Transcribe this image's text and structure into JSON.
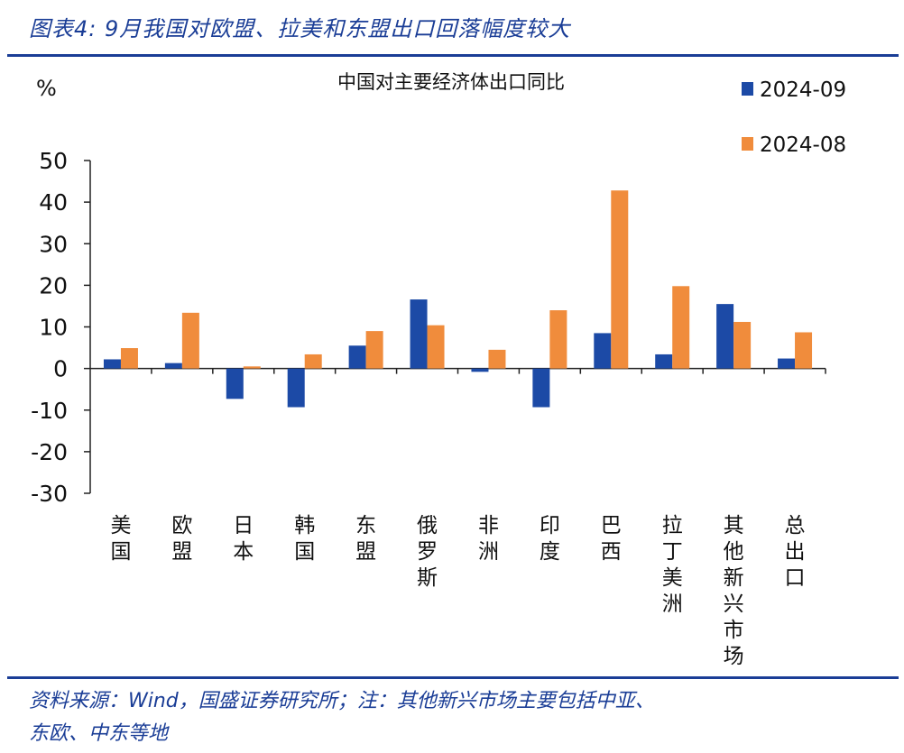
{
  "header": {
    "figure_title": "图表4:  9月我国对欧盟、拉美和东盟出口回落幅度较大"
  },
  "footer": {
    "source_line_1": "资料来源：Wind，国盛证券研究所；注：其他新兴市场主要包括中亚、",
    "source_line_2": "东欧、中东等地"
  },
  "colors": {
    "series_2024_09": "#1c4aa6",
    "series_2024_08": "#f08c3c",
    "brand_blue": "#1a3d96"
  },
  "chart_data": {
    "type": "bar",
    "title": "中国对主要经济体出口同比",
    "ylabel": "%",
    "ylim": [
      -30,
      50
    ],
    "yticks": [
      50,
      40,
      30,
      20,
      10,
      0,
      -10,
      -20,
      -30
    ],
    "grid": false,
    "legend_position": "top-right",
    "categories": [
      "美国",
      "欧盟",
      "日本",
      "韩国",
      "东盟",
      "俄罗斯",
      "非洲",
      "印度",
      "巴西",
      "拉丁美洲",
      "其他新兴市场",
      "总出口"
    ],
    "series": [
      {
        "name": "2024-09",
        "values": [
          2.2,
          1.3,
          -7.3,
          -9.3,
          5.5,
          16.6,
          -0.8,
          -9.3,
          8.5,
          3.4,
          15.5,
          2.4
        ]
      },
      {
        "name": "2024-08",
        "values": [
          4.9,
          13.4,
          0.5,
          3.4,
          9.0,
          10.4,
          4.5,
          14.0,
          42.8,
          19.8,
          11.2,
          8.7
        ]
      }
    ]
  }
}
